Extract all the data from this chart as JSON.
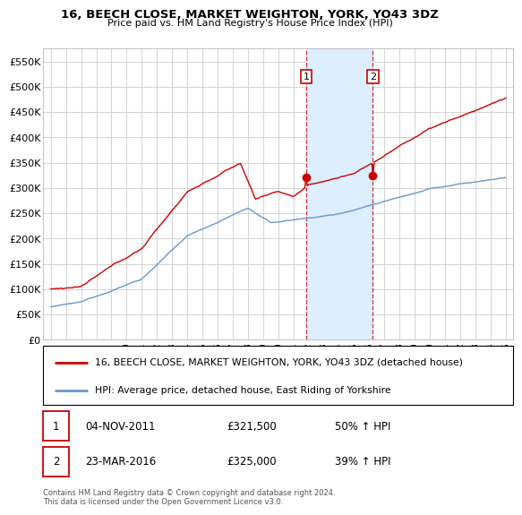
{
  "title": "16, BEECH CLOSE, MARKET WEIGHTON, YORK, YO43 3DZ",
  "subtitle": "Price paid vs. HM Land Registry's House Price Index (HPI)",
  "legend_line1": "16, BEECH CLOSE, MARKET WEIGHTON, YORK, YO43 3DZ (detached house)",
  "legend_line2": "HPI: Average price, detached house, East Riding of Yorkshire",
  "annotation1_label": "1",
  "annotation1_date": "04-NOV-2011",
  "annotation1_price": "£321,500",
  "annotation1_hpi": "50% ↑ HPI",
  "annotation2_label": "2",
  "annotation2_date": "23-MAR-2016",
  "annotation2_price": "£325,000",
  "annotation2_hpi": "39% ↑ HPI",
  "footer": "Contains HM Land Registry data © Crown copyright and database right 2024.\nThis data is licensed under the Open Government Licence v3.0.",
  "ylim": [
    0,
    575000
  ],
  "yticks": [
    0,
    50000,
    100000,
    150000,
    200000,
    250000,
    300000,
    350000,
    400000,
    450000,
    500000,
    550000
  ],
  "ylabels": [
    "£0",
    "£50K",
    "£100K",
    "£150K",
    "£200K",
    "£250K",
    "£300K",
    "£350K",
    "£400K",
    "£450K",
    "£500K",
    "£550K"
  ],
  "sale1_x": 2011.84,
  "sale1_y": 321500,
  "sale2_x": 2016.23,
  "sale2_y": 325000,
  "highlight_xmin": 2011.84,
  "highlight_xmax": 2016.23,
  "red_color": "#cc0000",
  "blue_color": "#6699cc",
  "highlight_color": "#ddeeff",
  "xlim_min": 1994.5,
  "xlim_max": 2025.5
}
